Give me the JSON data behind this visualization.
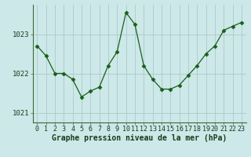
{
  "x": [
    0,
    1,
    2,
    3,
    4,
    5,
    6,
    7,
    8,
    9,
    10,
    11,
    12,
    13,
    14,
    15,
    16,
    17,
    18,
    19,
    20,
    21,
    22,
    23
  ],
  "y": [
    1022.7,
    1022.45,
    1022.0,
    1022.0,
    1021.85,
    1021.4,
    1021.55,
    1021.65,
    1022.2,
    1022.55,
    1023.55,
    1023.25,
    1022.2,
    1021.85,
    1021.6,
    1021.6,
    1021.7,
    1021.95,
    1022.2,
    1022.5,
    1022.7,
    1023.1,
    1023.2,
    1023.3
  ],
  "line_color": "#1a5e1a",
  "marker": "D",
  "marker_size": 2.5,
  "bg_color": "#cce8e8",
  "grid_color": "#b0c8c8",
  "ylabel_ticks": [
    1021,
    1022,
    1023
  ],
  "xlabel_label": "Graphe pression niveau de la mer (hPa)",
  "xlabel_fontsize": 7,
  "ylim": [
    1020.75,
    1023.75
  ],
  "xlim": [
    -0.5,
    23.5
  ],
  "tick_fontsize": 6.0,
  "ytick_fontsize": 6.5
}
